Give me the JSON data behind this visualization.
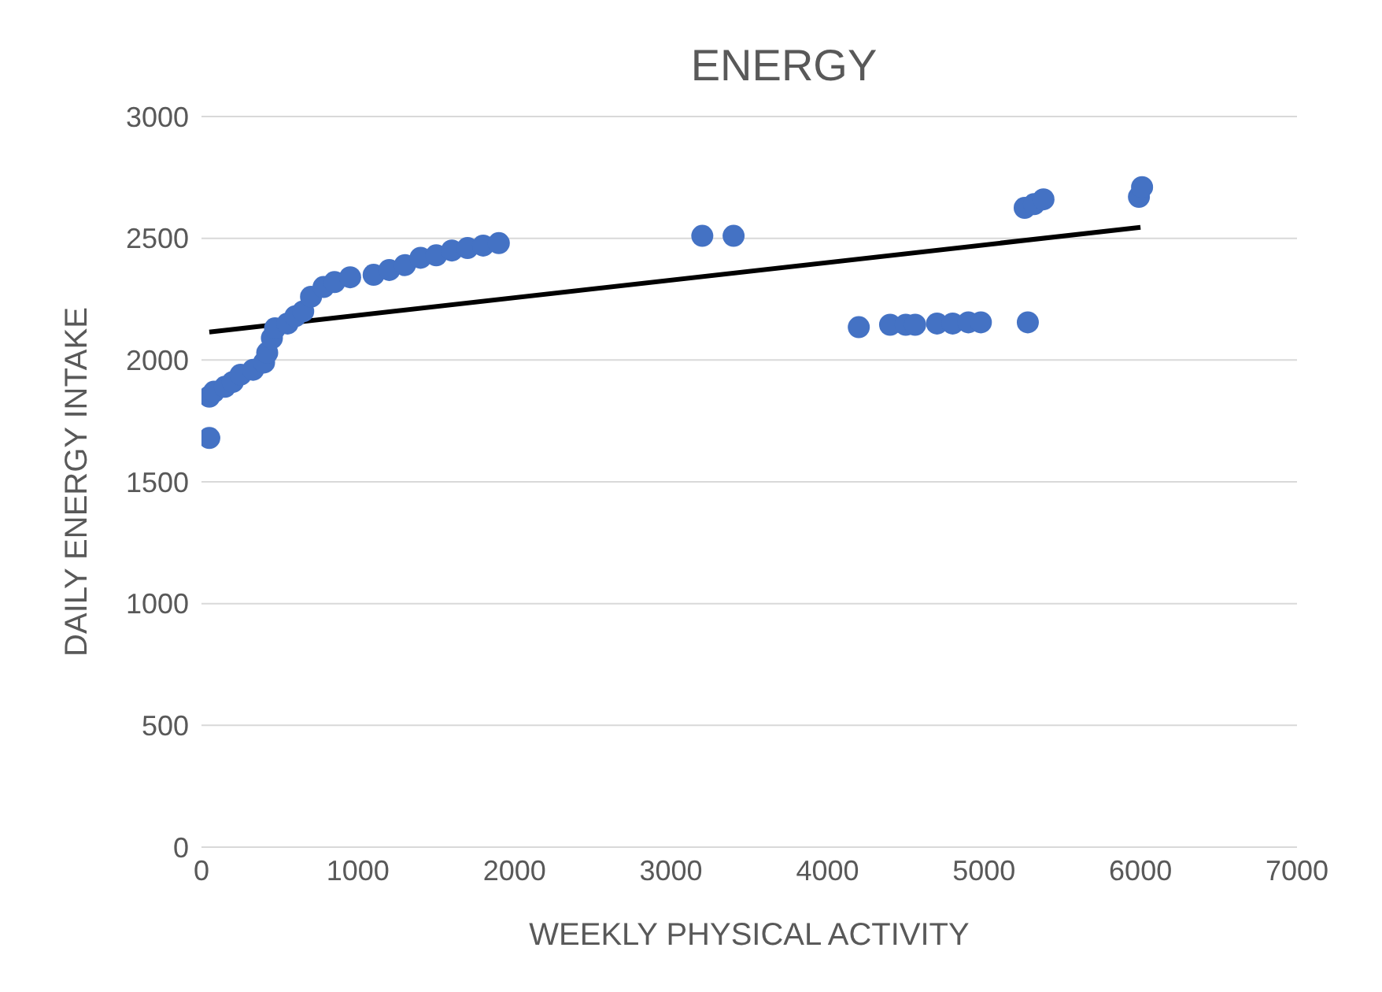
{
  "chart_data": {
    "type": "scatter",
    "title": "ENERGY",
    "xlabel": "WEEKLY PHYSICAL ACTIVITY",
    "ylabel": "DAILY ENERGY INTAKE",
    "xlim": [
      0,
      7000
    ],
    "xticks": [
      0,
      1000,
      2000,
      3000,
      4000,
      5000,
      6000,
      7000
    ],
    "ylim": [
      0,
      3000
    ],
    "yticks": [
      0,
      500,
      1000,
      1500,
      2000,
      2500,
      3000
    ],
    "grid": "y",
    "legend": false,
    "marker": "circle",
    "series": [
      {
        "color": "#4472c4",
        "x": [
          50,
          50,
          80,
          150,
          200,
          250,
          330,
          400,
          420,
          450,
          470,
          550,
          600,
          650,
          700,
          780,
          850,
          950,
          1100,
          1200,
          1300,
          1400,
          1500,
          1600,
          1700,
          1800,
          1900,
          3200,
          3400,
          4200,
          4400,
          4500,
          4560,
          4700,
          4800,
          4900,
          4980,
          5280,
          5260,
          5320,
          5380,
          5990,
          6010
        ],
        "values": [
          1680,
          1850,
          1870,
          1890,
          1910,
          1940,
          1960,
          1990,
          2030,
          2090,
          2130,
          2150,
          2180,
          2200,
          2260,
          2300,
          2320,
          2340,
          2350,
          2370,
          2390,
          2420,
          2430,
          2450,
          2460,
          2470,
          2480,
          2510,
          2510,
          2135,
          2145,
          2145,
          2145,
          2150,
          2150,
          2155,
          2155,
          2155,
          2625,
          2640,
          2660,
          2670,
          2710
        ]
      },
      {
        "type": "line",
        "color": "#000000",
        "marker": "none",
        "x": [
          50,
          6000
        ],
        "values": [
          2115,
          2545
        ]
      }
    ]
  }
}
